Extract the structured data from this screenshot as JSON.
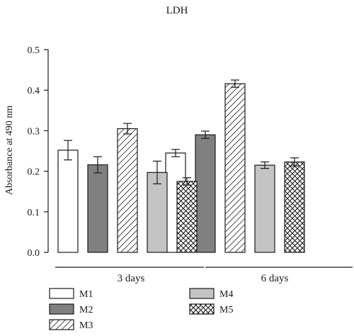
{
  "chart_data": {
    "type": "bar",
    "title": "LDH",
    "xlabel": "",
    "ylabel": "Absorbance at 490 nm",
    "ylim": [
      0,
      0.5
    ],
    "yticks": [
      0.0,
      0.1,
      0.2,
      0.3,
      0.4,
      0.5
    ],
    "ytick_labels": [
      "0.0",
      "0.1",
      "0.2",
      "0.3",
      "0.4",
      "0.5"
    ],
    "categories": [
      "3 days",
      "6 days"
    ],
    "series": [
      {
        "name": "M1",
        "values": [
          0.252,
          0.245
        ],
        "errors": [
          0.024,
          0.009
        ],
        "fill": "#ffffff",
        "pattern": "solid"
      },
      {
        "name": "M2",
        "values": [
          0.216,
          0.29
        ],
        "errors": [
          0.02,
          0.009
        ],
        "fill": "#808080",
        "pattern": "solid"
      },
      {
        "name": "M3",
        "values": [
          0.305,
          0.416
        ],
        "errors": [
          0.013,
          0.009
        ],
        "fill": "#ffffff",
        "pattern": "hatch"
      },
      {
        "name": "M4",
        "values": [
          0.197,
          0.215
        ],
        "errors": [
          0.028,
          0.008
        ],
        "fill": "#c4c4c4",
        "pattern": "solid"
      },
      {
        "name": "M5",
        "values": [
          0.175,
          0.223
        ],
        "errors": [
          0.009,
          0.01
        ],
        "fill": "#ffffff",
        "pattern": "crosshatch"
      }
    ],
    "grid": false,
    "legend_position": "bottom"
  }
}
